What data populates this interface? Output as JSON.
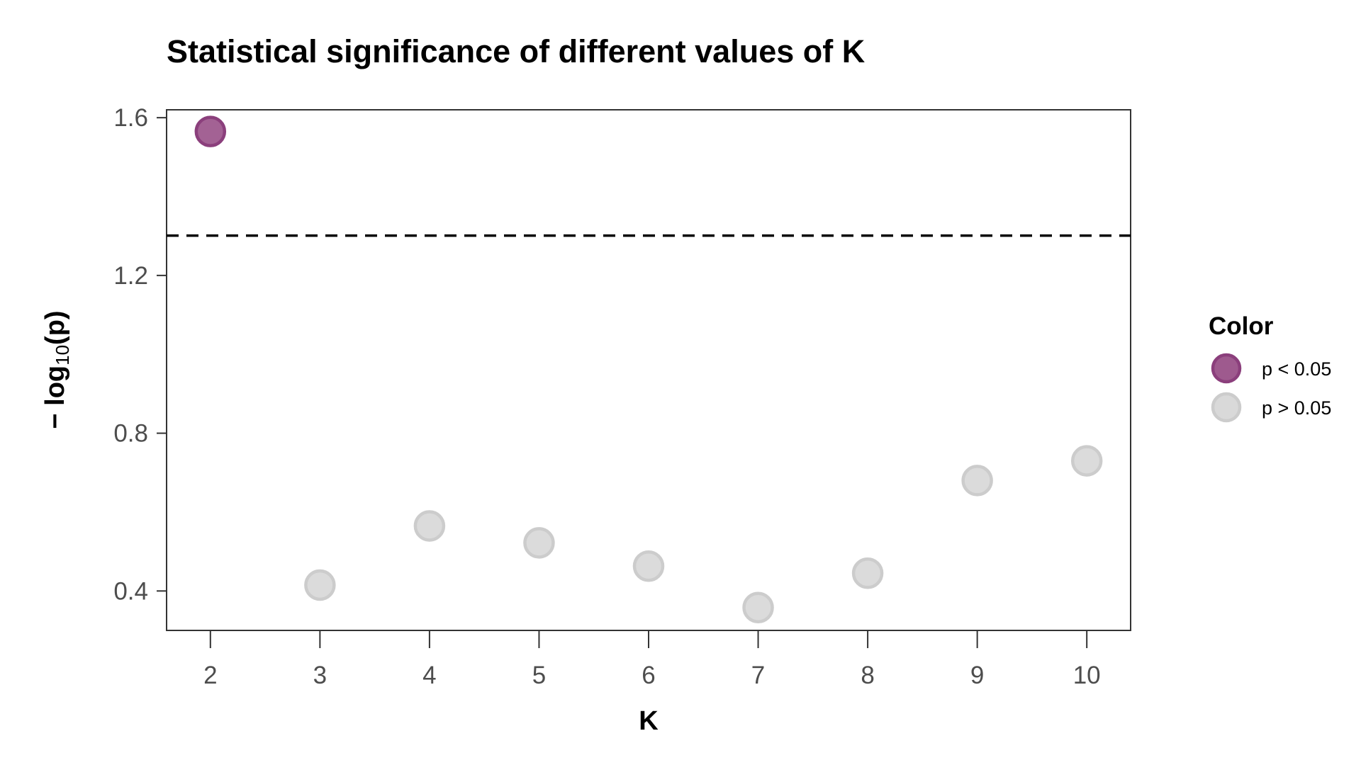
{
  "chart_data": {
    "type": "scatter",
    "title": "Statistical significance of different values of K",
    "xlabel": "K",
    "ylabel": {
      "prefix": "− log",
      "subscript": "10",
      "suffix": "(p)"
    },
    "xlim": [
      1.6,
      10.4
    ],
    "ylim": [
      0.3,
      1.62
    ],
    "x_ticks": [
      2,
      3,
      4,
      5,
      6,
      7,
      8,
      9,
      10
    ],
    "y_ticks": [
      0.4,
      0.8,
      1.2,
      1.6
    ],
    "y_tick_labels": [
      "0.4",
      "0.8",
      "1.2",
      "1.6"
    ],
    "threshold": 1.30103,
    "threshold_style": "dashed",
    "grid": false,
    "points": [
      {
        "x": 2,
        "y": 1.565,
        "group": "p < 0.05"
      },
      {
        "x": 3,
        "y": 0.415,
        "group": "p > 0.05"
      },
      {
        "x": 4,
        "y": 0.565,
        "group": "p > 0.05"
      },
      {
        "x": 5,
        "y": 0.522,
        "group": "p > 0.05"
      },
      {
        "x": 6,
        "y": 0.463,
        "group": "p > 0.05"
      },
      {
        "x": 7,
        "y": 0.358,
        "group": "p > 0.05"
      },
      {
        "x": 8,
        "y": 0.445,
        "group": "p > 0.05"
      },
      {
        "x": 9,
        "y": 0.68,
        "group": "p > 0.05"
      },
      {
        "x": 10,
        "y": 0.73,
        "group": "p > 0.05"
      }
    ],
    "legend": {
      "title": "Color",
      "position": "right",
      "entries": [
        {
          "label": "p < 0.05",
          "fill": "#9e5a8e",
          "stroke": "#8b3f7c"
        },
        {
          "label": "p > 0.05",
          "fill": "#d9d9d9",
          "stroke": "#cccccc"
        }
      ]
    }
  }
}
